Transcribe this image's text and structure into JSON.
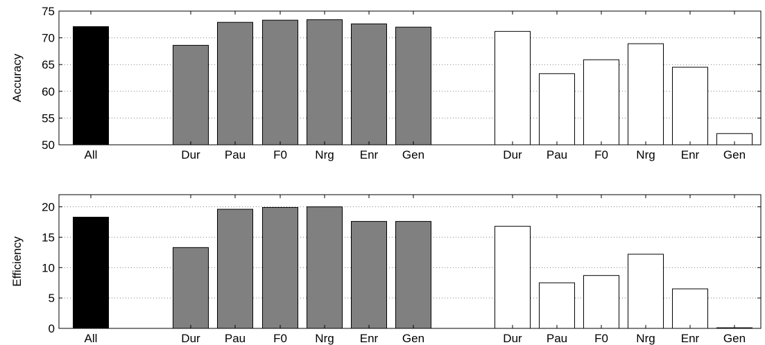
{
  "chart_data": [
    {
      "type": "bar",
      "ylabel": "Accuracy",
      "ylim": [
        50,
        75
      ],
      "yticks": [
        50,
        55,
        60,
        65,
        70,
        75
      ],
      "grid": true,
      "categories": [
        "All",
        "Dur",
        "Pau",
        "F0",
        "Nrg",
        "Enr",
        "Gen",
        "Dur",
        "Pau",
        "F0",
        "Nrg",
        "Enr",
        "Gen"
      ],
      "groups": [
        "all",
        "gray",
        "gray",
        "gray",
        "gray",
        "gray",
        "gray",
        "white",
        "white",
        "white",
        "white",
        "white",
        "white"
      ],
      "values": [
        72.1,
        68.6,
        72.9,
        73.3,
        73.4,
        72.6,
        72.0,
        71.2,
        63.3,
        65.9,
        68.9,
        64.5,
        52.1
      ]
    },
    {
      "type": "bar",
      "ylabel": "Efficiency",
      "ylim": [
        0,
        22
      ],
      "yticks": [
        0,
        5,
        10,
        15,
        20
      ],
      "grid": true,
      "categories": [
        "All",
        "Dur",
        "Pau",
        "F0",
        "Nrg",
        "Enr",
        "Gen",
        "Dur",
        "Pau",
        "F0",
        "Nrg",
        "Enr",
        "Gen"
      ],
      "groups": [
        "all",
        "gray",
        "gray",
        "gray",
        "gray",
        "gray",
        "gray",
        "white",
        "white",
        "white",
        "white",
        "white",
        "white"
      ],
      "values": [
        18.3,
        13.3,
        19.6,
        19.9,
        20.0,
        17.6,
        17.6,
        16.8,
        7.5,
        8.7,
        12.2,
        6.5,
        0.1
      ]
    }
  ],
  "colors": {
    "all": "#000000",
    "gray": "#808080",
    "white": "#ffffff"
  }
}
